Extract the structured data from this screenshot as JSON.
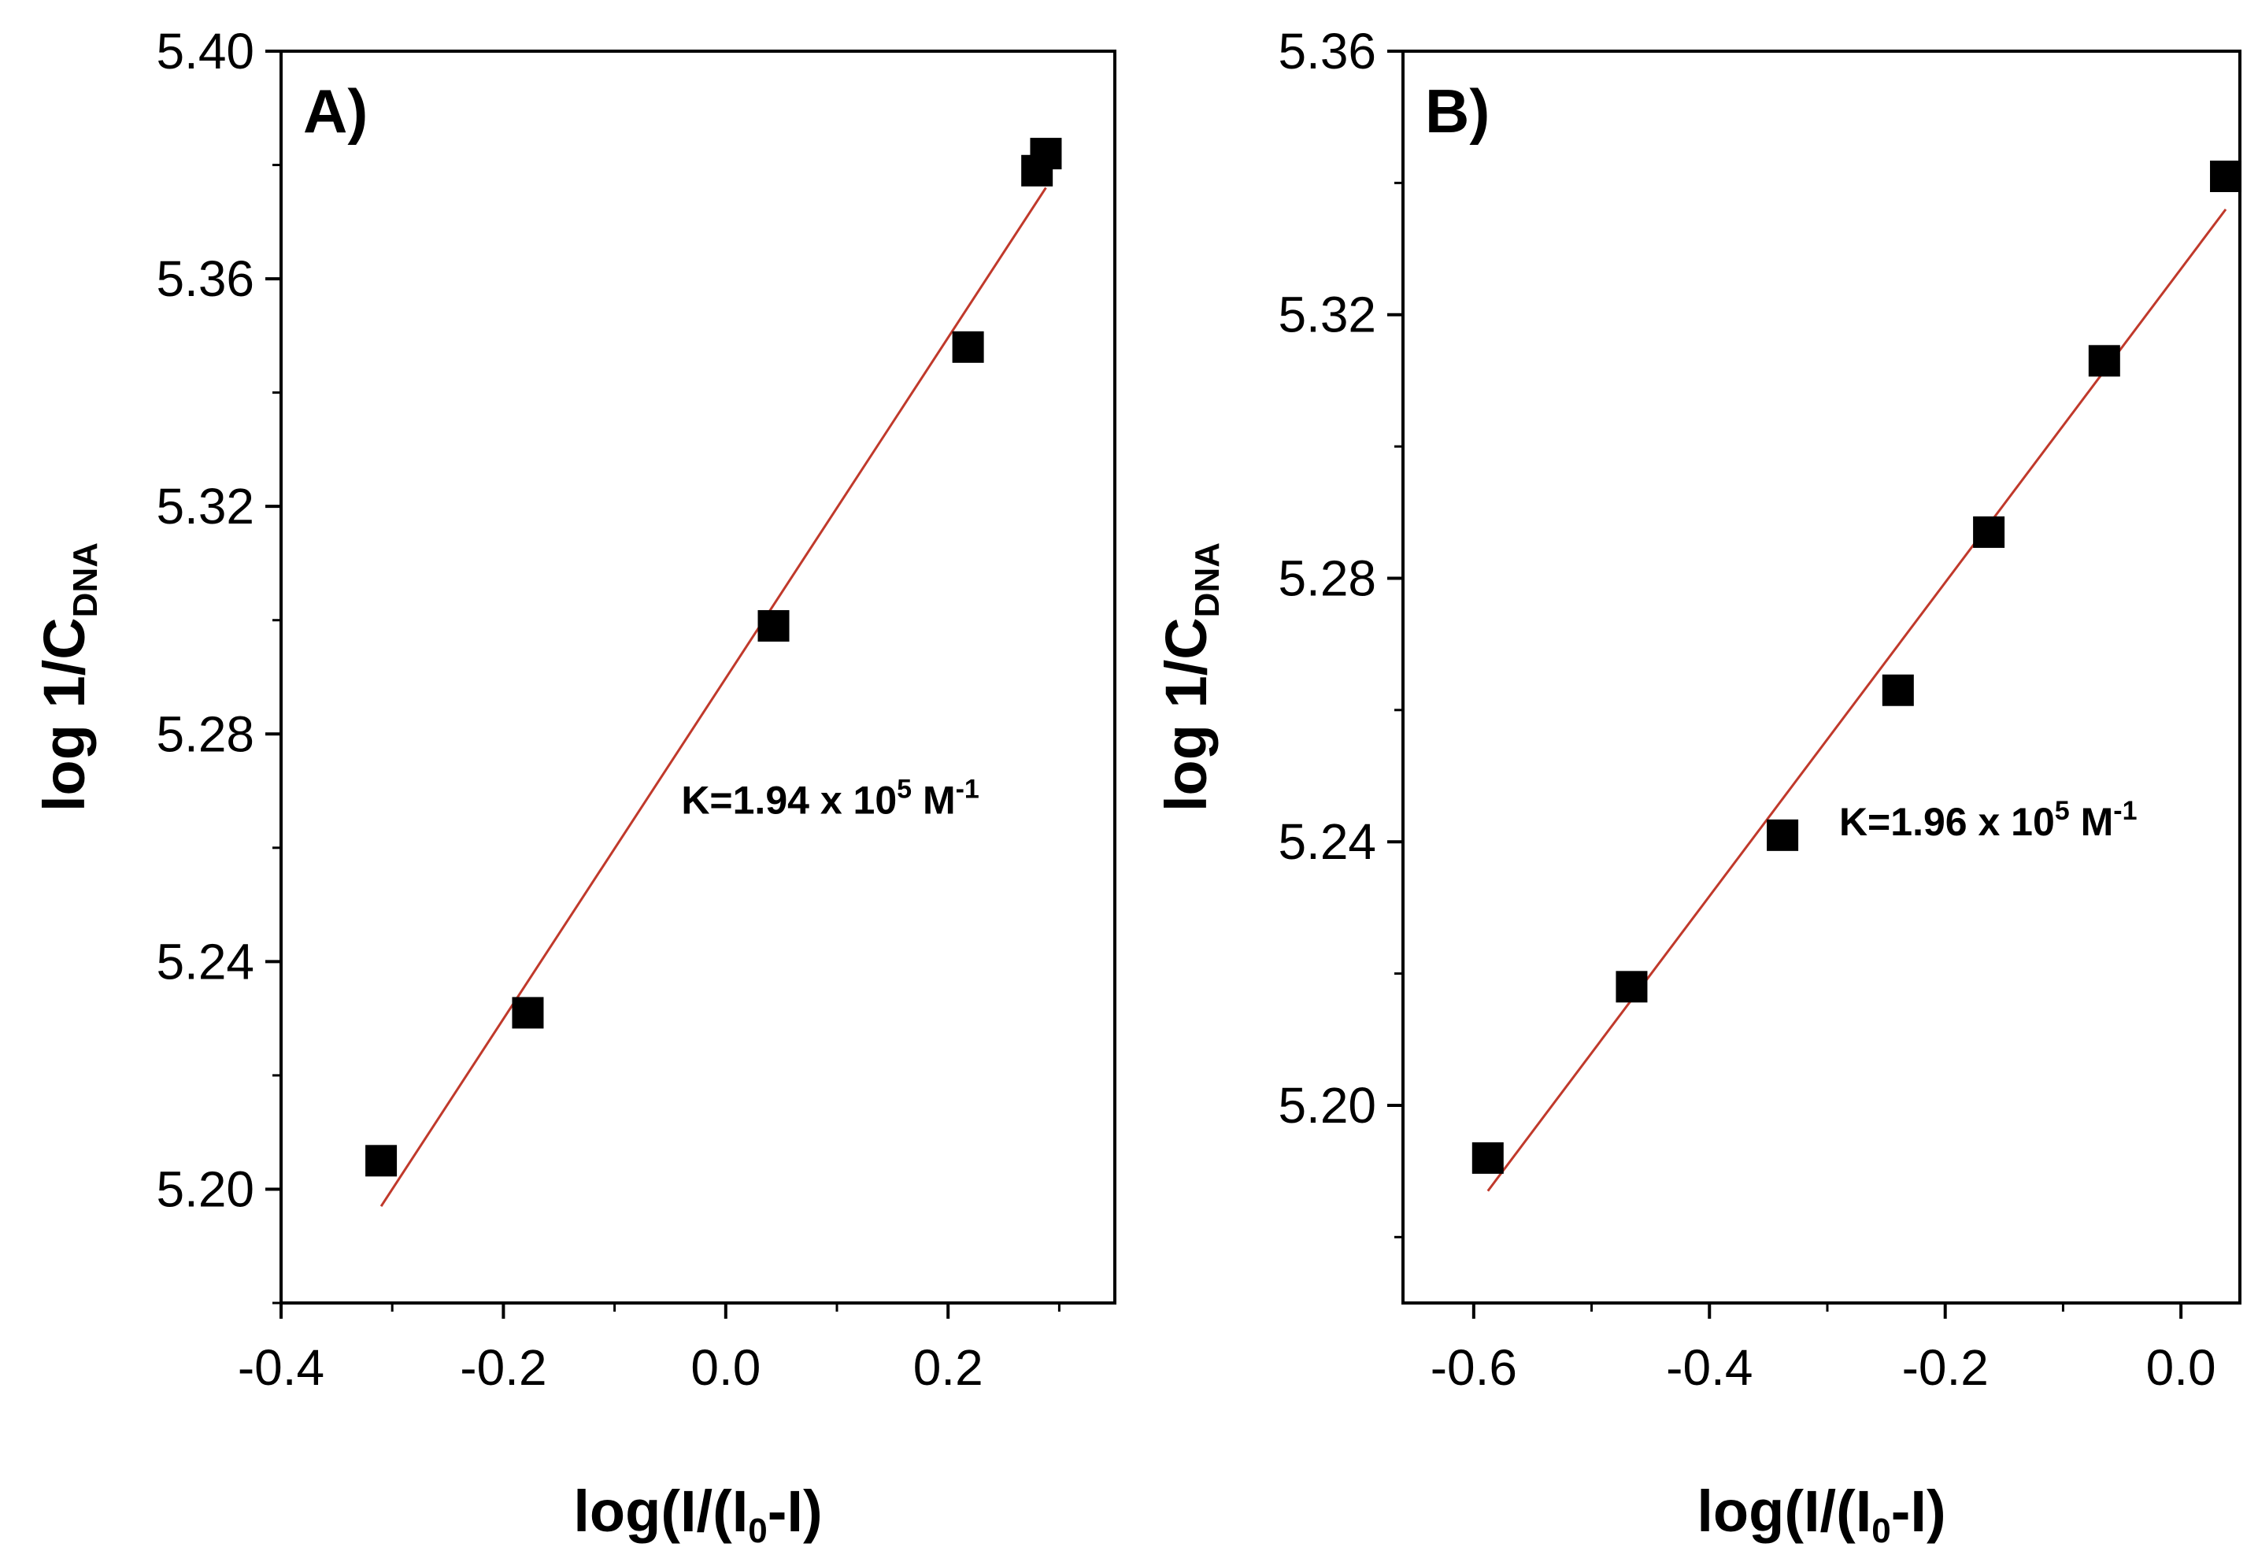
{
  "chart_data": [
    {
      "type": "scatter",
      "panel_label": "A)",
      "xlabel": {
        "main": "log(I/(I",
        "sub": "0",
        "end": "-I)"
      },
      "ylabel": {
        "main": "log 1/C",
        "sub": "DNA"
      },
      "xlim": [
        -0.4,
        0.35
      ],
      "ylim": [
        5.18,
        5.4
      ],
      "xticks": [
        -0.4,
        -0.2,
        0.0,
        0.2
      ],
      "xtick_labels": [
        "-0.4",
        "-0.2",
        "0.0",
        "0.2"
      ],
      "yticks": [
        5.2,
        5.24,
        5.28,
        5.32,
        5.36,
        5.4
      ],
      "ytick_labels": [
        "5.20",
        "5.24",
        "5.28",
        "5.32",
        "5.36",
        "5.40"
      ],
      "x_minor_step": 0.1,
      "y_minor_step": 0.02,
      "points": {
        "x": [
          -0.31,
          -0.178,
          0.043,
          0.218,
          0.28,
          0.288
        ],
        "y": [
          5.205,
          5.231,
          5.299,
          5.348,
          5.379,
          5.382
        ]
      },
      "fit_line": {
        "x": [
          -0.31,
          0.288
        ],
        "y": [
          5.197,
          5.376
        ],
        "color": "#c0392b"
      },
      "annotation": {
        "prefix": "K=1.94 x 10",
        "sup1": "5",
        "mid": " M",
        "sup2": "-1",
        "x": -0.04,
        "y": 5.266
      }
    },
    {
      "type": "scatter",
      "panel_label": "B)",
      "xlabel": {
        "main": "log(I/(I",
        "sub": "0",
        "end": "-I)"
      },
      "ylabel": {
        "main": "log 1/C",
        "sub": "DNA"
      },
      "xlim": [
        -0.66,
        0.05
      ],
      "ylim": [
        5.17,
        5.36
      ],
      "xticks": [
        -0.6,
        -0.4,
        -0.2,
        0.0
      ],
      "xtick_labels": [
        "-0.6",
        "-0.4",
        "-0.2",
        "0.0"
      ],
      "yticks": [
        5.2,
        5.24,
        5.28,
        5.32,
        5.36
      ],
      "ytick_labels": [
        "5.20",
        "5.24",
        "5.28",
        "5.32",
        "5.36"
      ],
      "x_minor_step": 0.1,
      "y_minor_step": 0.02,
      "points": {
        "x": [
          -0.588,
          -0.466,
          -0.338,
          -0.24,
          -0.163,
          -0.065,
          0.038
        ],
        "y": [
          5.192,
          5.218,
          5.241,
          5.263,
          5.287,
          5.313,
          5.341
        ]
      },
      "fit_line": {
        "x": [
          -0.588,
          0.038
        ],
        "y": [
          5.187,
          5.336
        ],
        "color": "#c0392b"
      },
      "annotation": {
        "prefix": "K=1.96 x 10",
        "sup1": "5",
        "mid": " M",
        "sup2": "-1",
        "x": -0.29,
        "y": 5.241
      }
    }
  ]
}
